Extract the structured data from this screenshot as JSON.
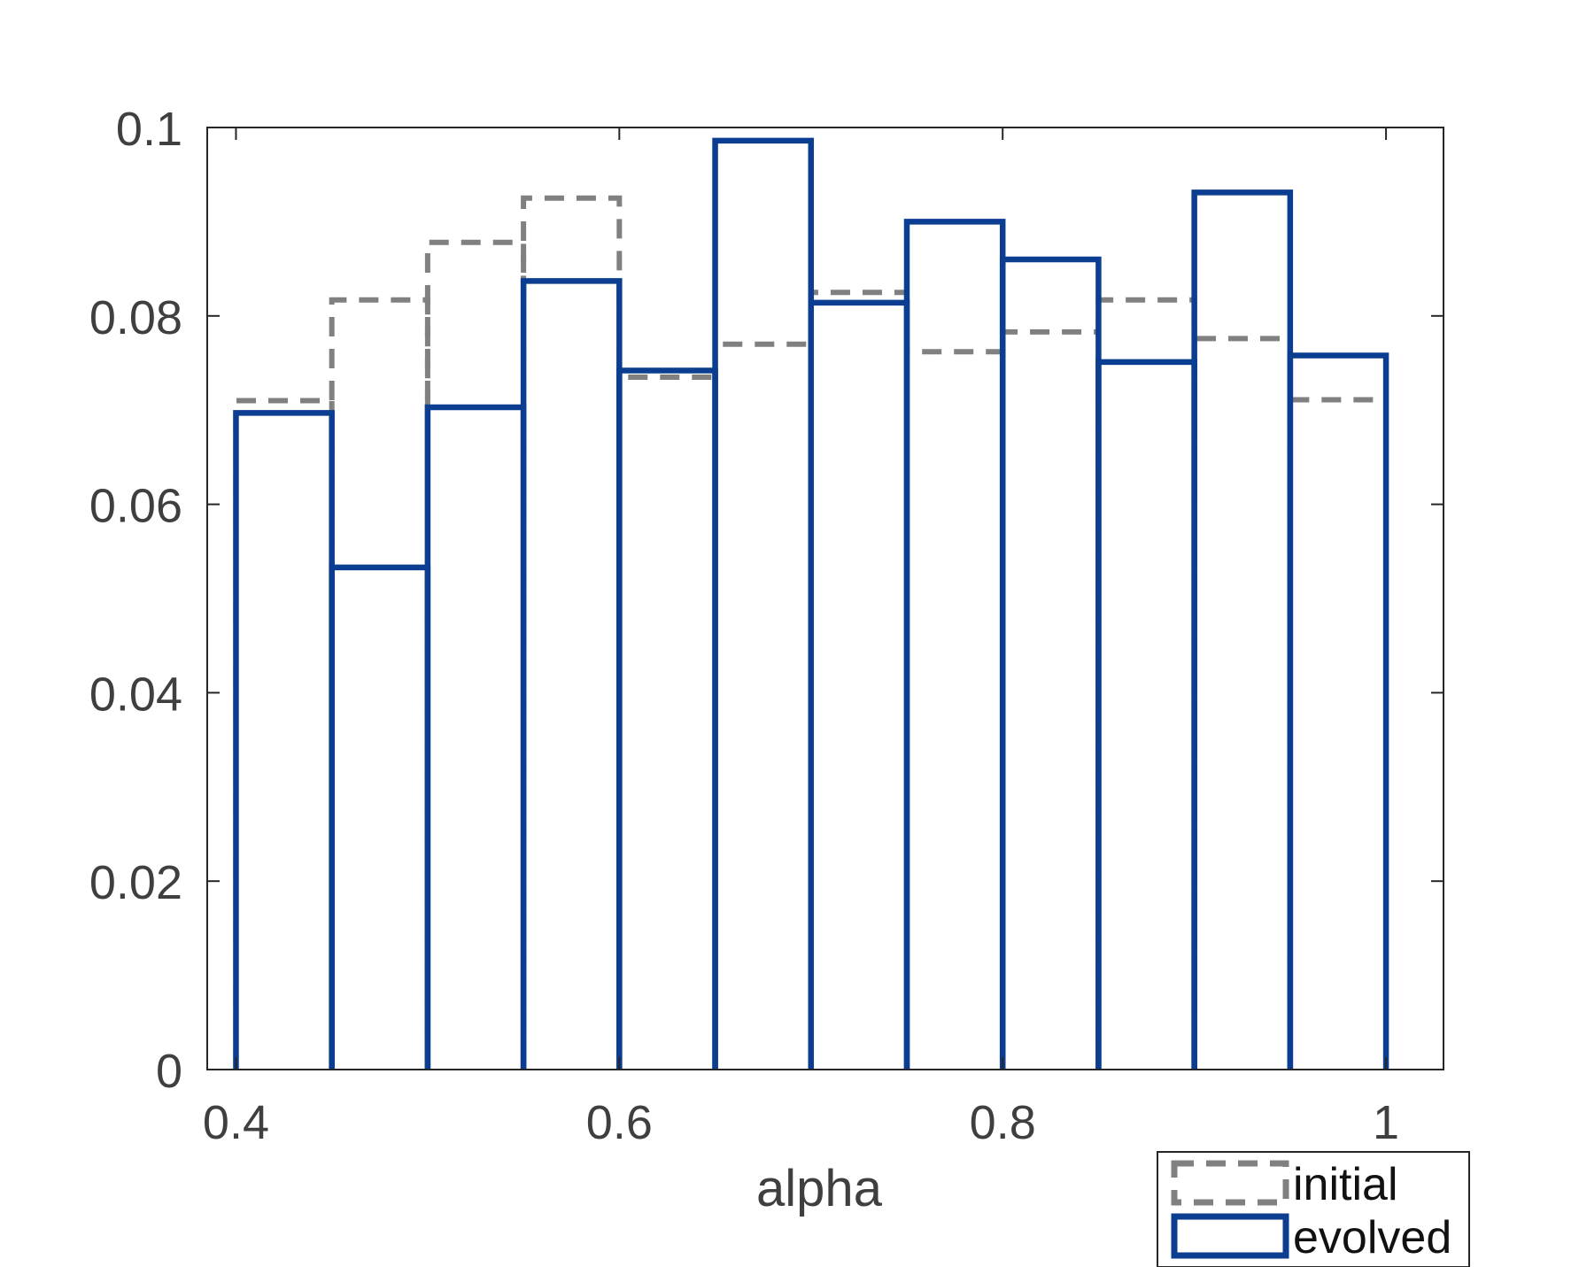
{
  "chart_data": {
    "type": "bar",
    "title": "",
    "xlabel": "alpha",
    "ylabel": "",
    "xlim": [
      0.385,
      1.03
    ],
    "ylim": [
      0,
      0.1
    ],
    "xticks": [
      0.4,
      0.6,
      0.8,
      1
    ],
    "xtick_labels": [
      "0.4",
      "0.6",
      "0.8",
      "1"
    ],
    "yticks": [
      0,
      0.02,
      0.04,
      0.06,
      0.08,
      0.1
    ],
    "ytick_labels": [
      "0",
      "0.02",
      "0.04",
      "0.06",
      "0.08",
      "0.1"
    ],
    "bin_edges": [
      0.4,
      0.45,
      0.5,
      0.55,
      0.6,
      0.65,
      0.7,
      0.75,
      0.8,
      0.85,
      0.9,
      0.95,
      1.0
    ],
    "series": [
      {
        "name": "initial",
        "style": "dashed-outline",
        "color": "#808080",
        "values": [
          0.071,
          0.0817,
          0.0878,
          0.0925,
          0.0735,
          0.077,
          0.0825,
          0.0762,
          0.0783,
          0.0817,
          0.0776,
          0.0711
        ]
      },
      {
        "name": "evolved",
        "style": "solid-outline",
        "color": "#0b3d91",
        "values": [
          0.0697,
          0.0533,
          0.0703,
          0.0837,
          0.0742,
          0.0986,
          0.0814,
          0.09,
          0.086,
          0.0751,
          0.0931,
          0.0758
        ]
      }
    ],
    "legend_position": "bottom-right",
    "grid": false
  }
}
